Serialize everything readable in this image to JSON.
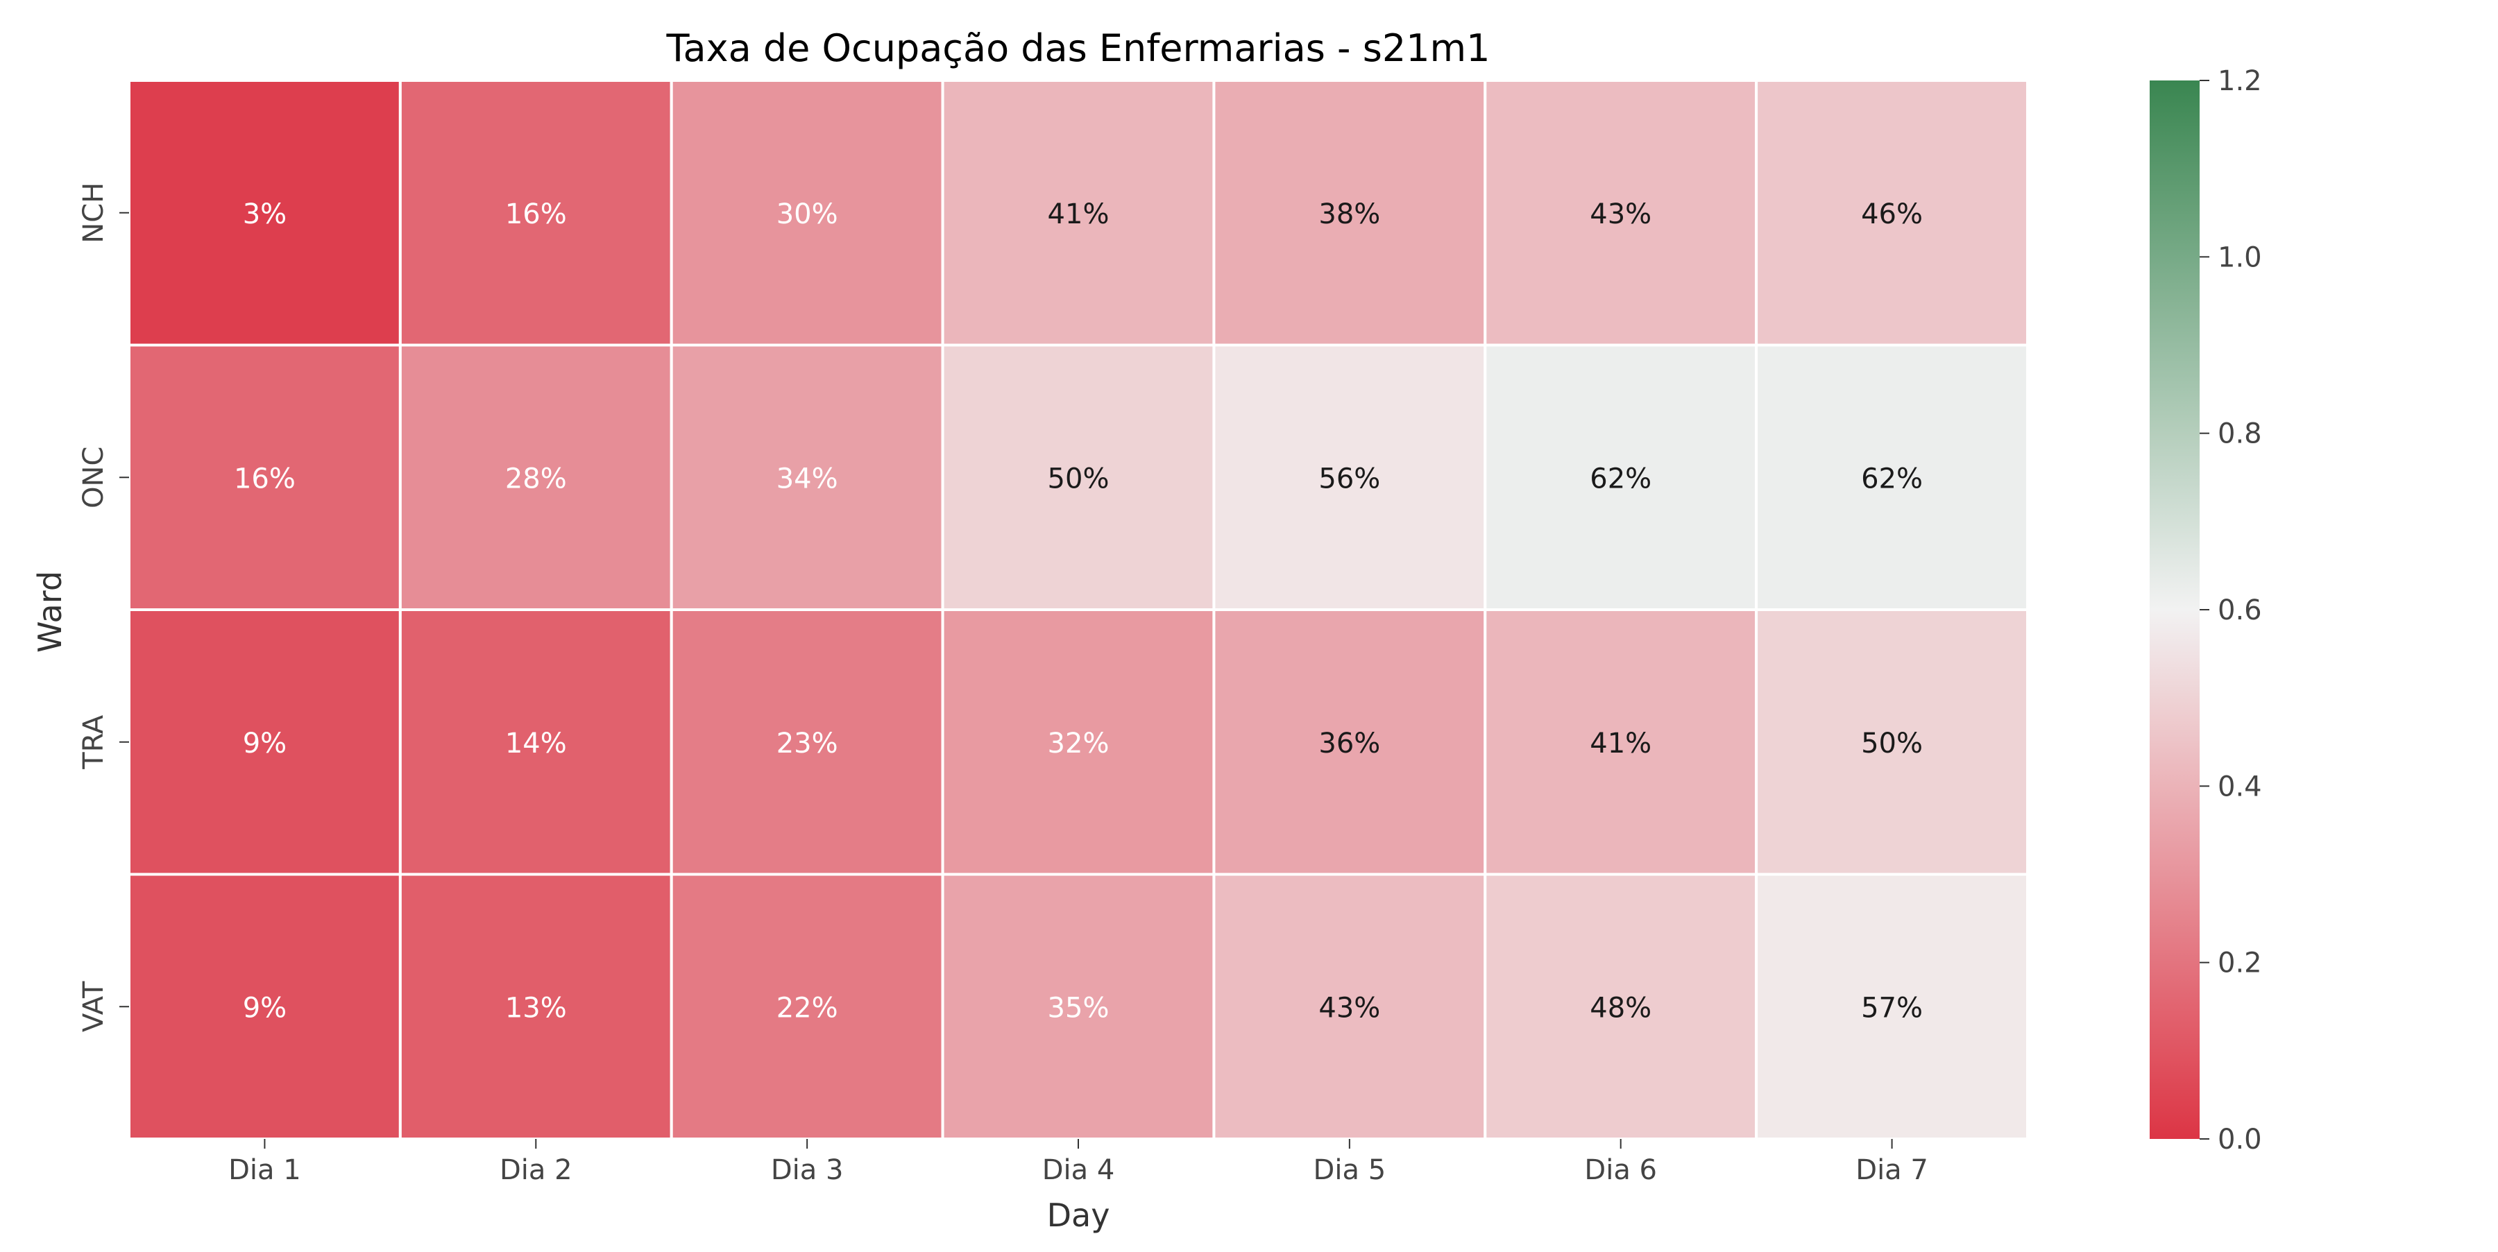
{
  "chart_data": {
    "type": "heatmap",
    "title": "Taxa de Ocupação das Enfermarias - s21m1",
    "xlabel": "Day",
    "ylabel": "Ward",
    "x_categories": [
      "Dia 1",
      "Dia 2",
      "Dia 3",
      "Dia 4",
      "Dia 5",
      "Dia 6",
      "Dia 7"
    ],
    "y_categories": [
      "NCH",
      "ONC",
      "TRA",
      "VAT"
    ],
    "values": [
      [
        0.03,
        0.16,
        0.3,
        0.41,
        0.38,
        0.43,
        0.46
      ],
      [
        0.16,
        0.28,
        0.34,
        0.5,
        0.56,
        0.62,
        0.62
      ],
      [
        0.09,
        0.14,
        0.23,
        0.32,
        0.36,
        0.41,
        0.5
      ],
      [
        0.09,
        0.13,
        0.22,
        0.35,
        0.43,
        0.48,
        0.57
      ]
    ],
    "cell_labels": [
      [
        "3%",
        "16%",
        "30%",
        "41%",
        "38%",
        "43%",
        "46%"
      ],
      [
        "16%",
        "28%",
        "34%",
        "50%",
        "56%",
        "62%",
        "62%"
      ],
      [
        "9%",
        "14%",
        "23%",
        "32%",
        "36%",
        "41%",
        "50%"
      ],
      [
        "9%",
        "13%",
        "22%",
        "35%",
        "43%",
        "48%",
        "57%"
      ]
    ],
    "colorbar": {
      "range": [
        0.0,
        1.2
      ],
      "ticks": [
        "0.0",
        "0.2",
        "0.4",
        "0.6",
        "0.8",
        "1.0",
        "1.2"
      ],
      "colors": {
        "low": "#dc3545",
        "mid": "#f2f2f2",
        "high": "#3a8651"
      }
    },
    "grid": false
  }
}
